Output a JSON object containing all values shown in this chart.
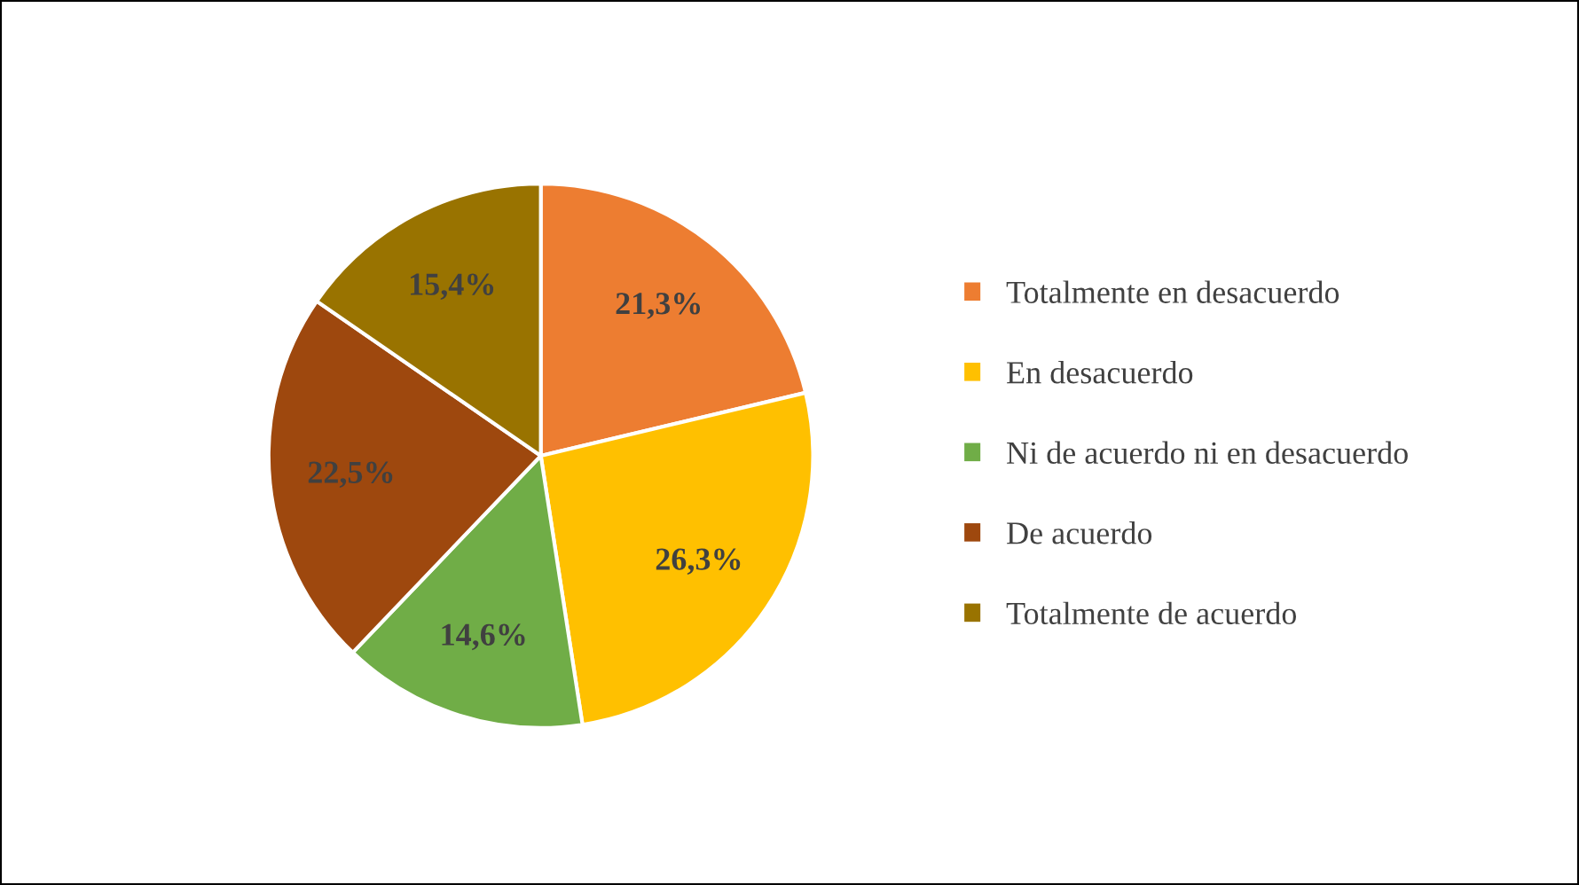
{
  "chart_data": {
    "type": "pie",
    "categories": [
      "Totalmente en desacuerdo",
      "En desacuerdo",
      "Ni de acuerdo ni en desacuerdo",
      "De acuerdo",
      "Totalmente de acuerdo"
    ],
    "values": [
      21.3,
      26.3,
      14.6,
      22.5,
      15.4
    ],
    "value_labels": [
      "21,3%",
      "26,3%",
      "14,6%",
      "22,5%",
      "15,4%"
    ],
    "colors": [
      "#ed7d31",
      "#ffc000",
      "#70ad47",
      "#9e480e",
      "#997300"
    ],
    "legend": "right"
  }
}
